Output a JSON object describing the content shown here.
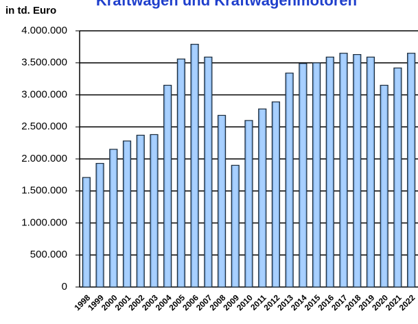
{
  "chart_data": {
    "type": "bar",
    "title": "Kraftwagen und Kraftwagenmotoren",
    "y_label": "in td. Euro",
    "categories": [
      "1998",
      "1999",
      "2000",
      "2001",
      "2002",
      "2003",
      "2004",
      "2005",
      "2006",
      "2007",
      "2008",
      "2009",
      "2010",
      "2011",
      "2012",
      "2013",
      "2014",
      "2015",
      "2016",
      "2017",
      "2018",
      "2019",
      "2020",
      "2021",
      "2022"
    ],
    "values": [
      1710000,
      1930000,
      2150000,
      2280000,
      2370000,
      2380000,
      3150000,
      3560000,
      3790000,
      3590000,
      2680000,
      1900000,
      2600000,
      2780000,
      2890000,
      3340000,
      3490000,
      3500000,
      3590000,
      3650000,
      3630000,
      3590000,
      3150000,
      3420000,
      3650000
    ],
    "color": "#99ccff",
    "ylim": [
      0,
      4000000
    ],
    "yticks": [
      0,
      {
        "value": 500000,
        "label": "500.000"
      },
      {
        "value": 1000000,
        "label": "1.000.000"
      },
      {
        "value": 1500000,
        "label": "1.500.000"
      },
      {
        "value": 2000000,
        "label": "2.000.000"
      },
      {
        "value": 2500000,
        "label": "2.500.000"
      },
      {
        "value": 3000000,
        "label": "3.000.000"
      },
      {
        "value": 3500000,
        "label": "3.500.000"
      },
      {
        "value": 4000000,
        "label": "4.000.000"
      }
    ],
    "grid": true
  }
}
